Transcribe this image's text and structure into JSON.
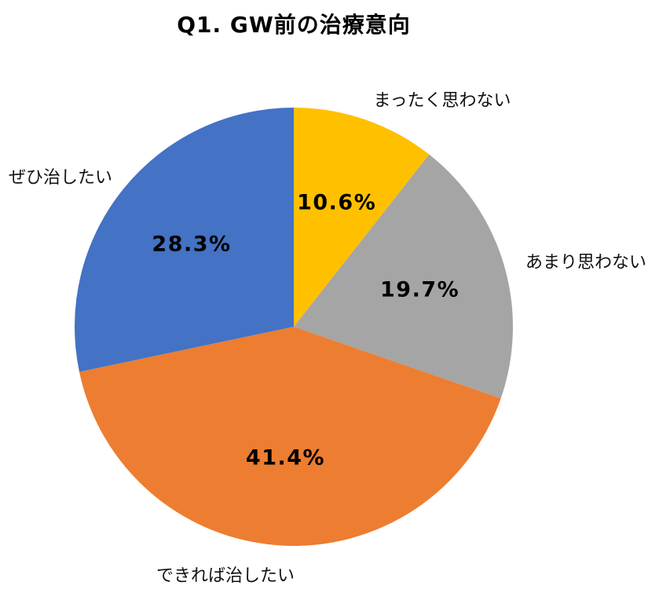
{
  "chart_data": {
    "type": "pie",
    "title": "Q1. GW前の治療意向",
    "start_angle": "12 o'clock",
    "direction": "clockwise",
    "legend_position": "none (outside labels next to slices)",
    "slices": [
      {
        "label": "まったく思わない",
        "value": 10.6,
        "pct_label": "10.6%",
        "color": "#FFC000"
      },
      {
        "label": "あまり思わない",
        "value": 19.7,
        "pct_label": "19.7%",
        "color": "#A5A5A5"
      },
      {
        "label": "できれば治したい",
        "value": 41.4,
        "pct_label": "41.4%",
        "color": "#ED7D31"
      },
      {
        "label": "ぜひ治したい",
        "value": 28.3,
        "pct_label": "28.3%",
        "color": "#4472C4"
      }
    ]
  }
}
